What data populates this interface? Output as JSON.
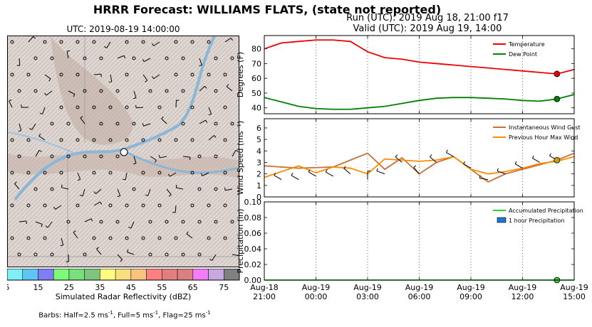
{
  "title": "HRRR Forecast: WILLIAMS FLATS, (state not reported)",
  "run_label": "Run (UTC): 2019 Aug 18, 21:00 f17",
  "valid_label": "Valid (UTC): 2019 Aug 19, 14:00",
  "map": {
    "time_label": "UTC: 2019-08-19 14:00:00",
    "colorbar": {
      "label": "Simulated Radar Reflectivity (dBZ)",
      "ticks": [
        "5",
        "15",
        "25",
        "35",
        "45",
        "55",
        "65",
        "75"
      ],
      "colors": [
        "#7ff0f8",
        "#5fc5f6",
        "#7f7ff5",
        "#7dfa78",
        "#78e07a",
        "#7dc47f",
        "#fefb7f",
        "#f8e07f",
        "#fbc47d",
        "#fd7f7f",
        "#e27e7e",
        "#db8080",
        "#f57cf8",
        "#c8a8e0",
        "#808080"
      ]
    },
    "barbs_note": {
      "prefix": "Barbs: Half=2.5 ms",
      "sup1": "-1",
      "mid1": ", Full=5 ms",
      "sup2": "-1",
      "mid2": ", Flag=25 ms",
      "sup3": "-1"
    }
  },
  "chart_data": [
    {
      "type": "line",
      "x": [
        "2019-08-18 21:00",
        "2019-08-18 22:00",
        "2019-08-18 23:00",
        "2019-08-19 00:00",
        "2019-08-19 01:00",
        "2019-08-19 02:00",
        "2019-08-19 03:00",
        "2019-08-19 04:00",
        "2019-08-19 05:00",
        "2019-08-19 06:00",
        "2019-08-19 07:00",
        "2019-08-19 08:00",
        "2019-08-19 09:00",
        "2019-08-19 10:00",
        "2019-08-19 11:00",
        "2019-08-19 12:00",
        "2019-08-19 13:00",
        "2019-08-19 14:00",
        "2019-08-19 15:00"
      ],
      "series": [
        {
          "name": "Temperature",
          "color": "#ee0000",
          "values": [
            80,
            84,
            85,
            86,
            86,
            85,
            78,
            74,
            73,
            71,
            70,
            69,
            68,
            67,
            66,
            65,
            64,
            63,
            66
          ]
        },
        {
          "name": "Dew Point",
          "color": "#008000",
          "values": [
            47,
            44,
            41,
            39.5,
            39,
            39,
            40,
            41,
            43,
            45,
            46.5,
            47,
            47,
            46.5,
            46,
            45,
            44.5,
            46,
            49
          ]
        }
      ],
      "ylabel": "Degrees (F)",
      "ylim": [
        36,
        89
      ],
      "yticks": [
        40,
        50,
        60,
        70,
        80
      ],
      "legend": "top-right",
      "current_marker": {
        "x": "2019-08-19 14:00",
        "temperature": 63,
        "dew_point": 46
      }
    },
    {
      "type": "line",
      "x": [
        "2019-08-18 21:00",
        "2019-08-18 22:00",
        "2019-08-18 23:00",
        "2019-08-19 00:00",
        "2019-08-19 01:00",
        "2019-08-19 02:00",
        "2019-08-19 03:00",
        "2019-08-19 04:00",
        "2019-08-19 05:00",
        "2019-08-19 06:00",
        "2019-08-19 07:00",
        "2019-08-19 08:00",
        "2019-08-19 09:00",
        "2019-08-19 10:00",
        "2019-08-19 11:00",
        "2019-08-19 12:00",
        "2019-08-19 13:00",
        "2019-08-19 14:00",
        "2019-08-19 15:00"
      ],
      "series": [
        {
          "name": "Instantaneous Wind Gust",
          "color": "#c87137",
          "values": [
            2.7,
            2.6,
            2.5,
            2.55,
            2.6,
            3.2,
            3.8,
            2.4,
            3.4,
            2.0,
            3.0,
            3.5,
            2.4,
            1.3,
            2.0,
            2.4,
            2.8,
            3.2,
            3.8
          ]
        },
        {
          "name": "Previous Hour Max Wind",
          "color": "#ff8c00",
          "values": [
            1.7,
            2.2,
            2.7,
            2.1,
            2.6,
            2.5,
            2.0,
            3.3,
            3.2,
            3.1,
            3.2,
            3.5,
            2.4,
            2.0,
            2.2,
            2.5,
            2.9,
            3.1,
            3.5
          ]
        }
      ],
      "barbs": [
        {
          "x": "2019-08-18 22:00",
          "speed": 1.5,
          "dir": 300
        },
        {
          "x": "2019-08-18 23:00",
          "speed": 1.5,
          "dir": 300
        },
        {
          "x": "2019-08-19 00:00",
          "speed": 1.8,
          "dir": 300
        },
        {
          "x": "2019-08-19 01:00",
          "speed": 1.8,
          "dir": 300
        },
        {
          "x": "2019-08-19 02:00",
          "speed": 2.0,
          "dir": 310
        },
        {
          "x": "2019-08-19 03:00",
          "speed": 1.5,
          "dir": 360
        },
        {
          "x": "2019-08-19 04:00",
          "speed": 2.0,
          "dir": 290
        },
        {
          "x": "2019-08-19 05:00",
          "speed": 3.0,
          "dir": 310
        },
        {
          "x": "2019-08-19 06:00",
          "speed": 2.0,
          "dir": 320
        },
        {
          "x": "2019-08-19 07:00",
          "speed": 3.0,
          "dir": 310
        },
        {
          "x": "2019-08-19 08:00",
          "speed": 3.5,
          "dir": 300
        },
        {
          "x": "2019-08-19 09:00",
          "speed": 2.5,
          "dir": 300
        },
        {
          "x": "2019-08-19 10:00",
          "speed": 1.5,
          "dir": 280
        },
        {
          "x": "2019-08-19 11:00",
          "speed": 2.0,
          "dir": 290
        },
        {
          "x": "2019-08-19 12:00",
          "speed": 2.5,
          "dir": 300
        },
        {
          "x": "2019-08-19 13:00",
          "speed": 3.0,
          "dir": 300
        },
        {
          "x": "2019-08-19 14:00",
          "speed": 3.2,
          "dir": 300
        }
      ],
      "ylabel": "Wind Speed (ms⁻¹)",
      "ylim": [
        0,
        6.8
      ],
      "yticks": [
        0,
        1,
        2,
        3,
        4,
        5,
        6
      ],
      "legend": "top-right",
      "current_marker": {
        "x": "2019-08-19 14:00",
        "value": 3.2
      }
    },
    {
      "type": "bar",
      "x": [
        "2019-08-18 21:00",
        "2019-08-19 00:00",
        "2019-08-19 03:00",
        "2019-08-19 06:00",
        "2019-08-19 09:00",
        "2019-08-19 12:00",
        "2019-08-19 15:00"
      ],
      "series": [
        {
          "name": "Accumulated Precipitation",
          "color": "#33cc33",
          "values": [
            0,
            0,
            0,
            0,
            0,
            0,
            0
          ]
        },
        {
          "name": "1 hour Precipitation",
          "color": "#1f77d4",
          "values": [
            0,
            0,
            0,
            0,
            0,
            0,
            0
          ]
        }
      ],
      "ylabel": "Precipitation (in)",
      "ylim": [
        0,
        0.1
      ],
      "yticks": [
        "0.00",
        "0.02",
        "0.04",
        "0.06",
        "0.08",
        "0.10"
      ],
      "legend": "top-right",
      "current_marker": {
        "x": "2019-08-19 14:00",
        "value": 0
      }
    }
  ],
  "time_axis": {
    "ticks": [
      {
        "x": "2019-08-18 21:00",
        "line1": "Aug-18",
        "line2": "21:00"
      },
      {
        "x": "2019-08-19 00:00",
        "line1": "Aug-19",
        "line2": "00:00"
      },
      {
        "x": "2019-08-19 03:00",
        "line1": "Aug-19",
        "line2": "03:00"
      },
      {
        "x": "2019-08-19 06:00",
        "line1": "Aug-19",
        "line2": "06:00"
      },
      {
        "x": "2019-08-19 09:00",
        "line1": "Aug-19",
        "line2": "09:00"
      },
      {
        "x": "2019-08-19 12:00",
        "line1": "Aug-19",
        "line2": "12:00"
      },
      {
        "x": "2019-08-19 15:00",
        "line1": "Aug-19",
        "line2": "15:00"
      }
    ]
  }
}
